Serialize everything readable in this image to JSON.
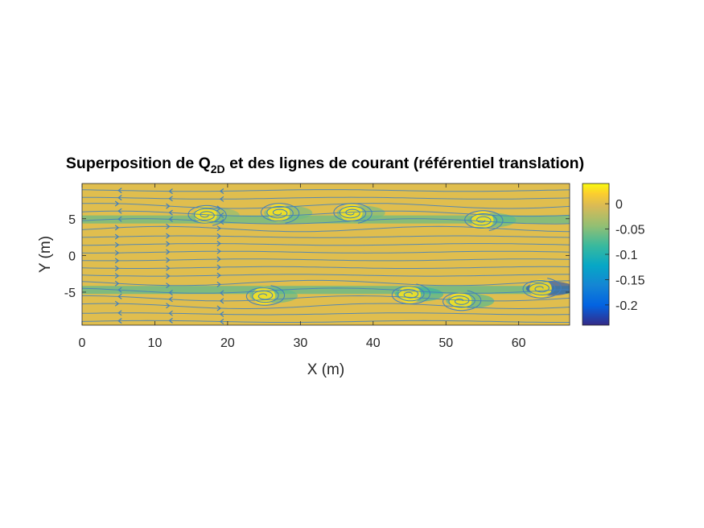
{
  "chart_data": {
    "type": "heatmap",
    "title_main": "Superposition de Q",
    "title_subscript": "2D",
    "title_rest": " et des lignes de courant (référentiel translation)",
    "xlabel": "X (m)",
    "ylabel": "Y (m)",
    "xlim": [
      0,
      67
    ],
    "ylim": [
      -9.5,
      9.8
    ],
    "x_ticks": [
      0,
      10,
      20,
      30,
      40,
      50,
      60
    ],
    "x_tick_labels": [
      "0",
      "10",
      "20",
      "30",
      "40",
      "50",
      "60"
    ],
    "y_ticks": [
      -5,
      0,
      5
    ],
    "y_tick_labels": [
      "-5",
      "0",
      "5"
    ],
    "colorbar": {
      "range": [
        -0.24,
        0.04
      ],
      "ticks": [
        0,
        -0.05,
        -0.1,
        -0.15,
        -0.2
      ],
      "tick_labels": [
        "0",
        "-0.05",
        "-0.1",
        "-0.15",
        "-0.2"
      ],
      "colormap": "parula"
    },
    "background_value": 0,
    "streamline_color": "#3f7fbf",
    "grid": "off",
    "vortices": [
      {
        "x": 17,
        "y": 5.5,
        "strength": -0.05,
        "rotation": "clockwise"
      },
      {
        "x": 27,
        "y": 5.8,
        "strength": -0.06,
        "rotation": "clockwise"
      },
      {
        "x": 37,
        "y": 5.8,
        "strength": -0.06,
        "rotation": "clockwise"
      },
      {
        "x": 55,
        "y": 4.8,
        "strength": -0.07,
        "rotation": "clockwise"
      },
      {
        "x": 25,
        "y": -5.5,
        "strength": -0.07,
        "rotation": "counterclockwise"
      },
      {
        "x": 45,
        "y": -5.3,
        "strength": -0.09,
        "rotation": "counterclockwise"
      },
      {
        "x": 52,
        "y": -6.2,
        "strength": -0.08,
        "rotation": "counterclockwise"
      },
      {
        "x": 63,
        "y": -4.5,
        "strength": -0.22,
        "rotation": "counterclockwise"
      }
    ]
  }
}
